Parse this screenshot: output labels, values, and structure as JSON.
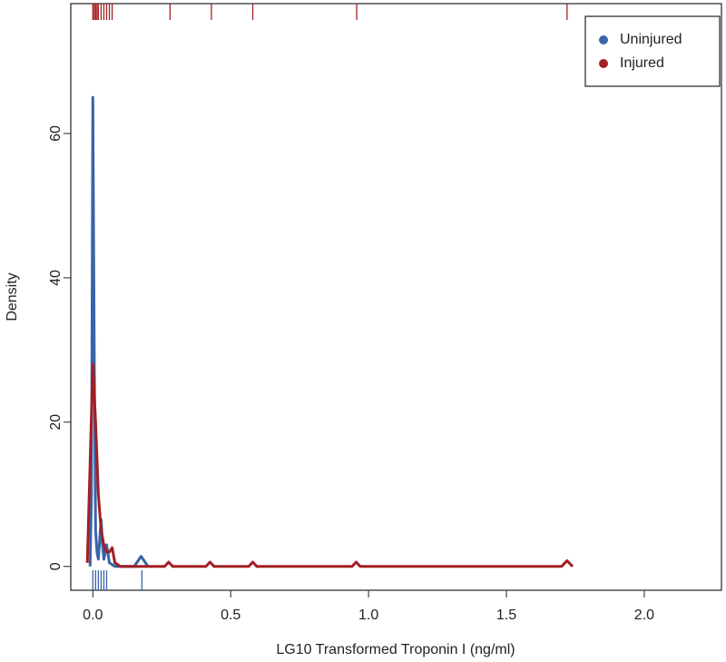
{
  "chart_data": {
    "type": "density",
    "x_label": "LG10 Transformed Troponin I (ng/ml)",
    "y_label": "Density",
    "xlim": [
      -0.08,
      2.28
    ],
    "ylim": [
      -3.3,
      78
    ],
    "xticks": [
      {
        "value": 0,
        "label": "0.0"
      },
      0.5,
      {
        "value": 1,
        "label": "1.0"
      },
      1.5,
      {
        "value": 2,
        "label": "2.0"
      }
    ],
    "yticks": [
      0,
      20,
      40,
      60
    ],
    "legend": "top-right",
    "series": [
      {
        "name": "Uninjured",
        "color": "#3a64a8",
        "rug_side": "bottom",
        "x": [
          -0.01,
          -0.005,
          0,
          0.005,
          0.01,
          0.015,
          0.02,
          0.03,
          0.035,
          0.04,
          0.05,
          0.06,
          0.08,
          0.15,
          0.175,
          0.2
        ],
        "values": [
          0,
          10,
          65,
          30,
          5,
          2,
          1,
          6.5,
          3,
          1,
          3,
          0.5,
          0,
          0,
          1.4,
          0
        ],
        "rug": [
          0,
          0.01,
          0.02,
          0.03,
          0.04,
          0.05,
          0.178
        ]
      },
      {
        "name": "Injured",
        "color": "#a31f24",
        "rug_side": "top",
        "x": [
          -0.02,
          0,
          0.01,
          0.02,
          0.03,
          0.04,
          0.05,
          0.06,
          0.07,
          0.08,
          0.1,
          0.26,
          0.275,
          0.29,
          0.41,
          0.425,
          0.44,
          0.565,
          0.58,
          0.595,
          0.94,
          0.955,
          0.97,
          1.7,
          1.72,
          1.74
        ],
        "values": [
          0.5,
          28,
          20,
          10,
          5,
          3,
          2,
          2,
          2.6,
          0.5,
          0,
          0,
          0.6,
          0,
          0,
          0.6,
          0,
          0,
          0.6,
          0,
          0,
          0.6,
          0,
          0,
          0.8,
          0
        ],
        "rug": [
          0,
          0.005,
          0.01,
          0.015,
          0.02,
          0.03,
          0.04,
          0.05,
          0.06,
          0.07,
          0.28,
          0.43,
          0.58,
          0.957,
          1.72
        ]
      }
    ]
  }
}
